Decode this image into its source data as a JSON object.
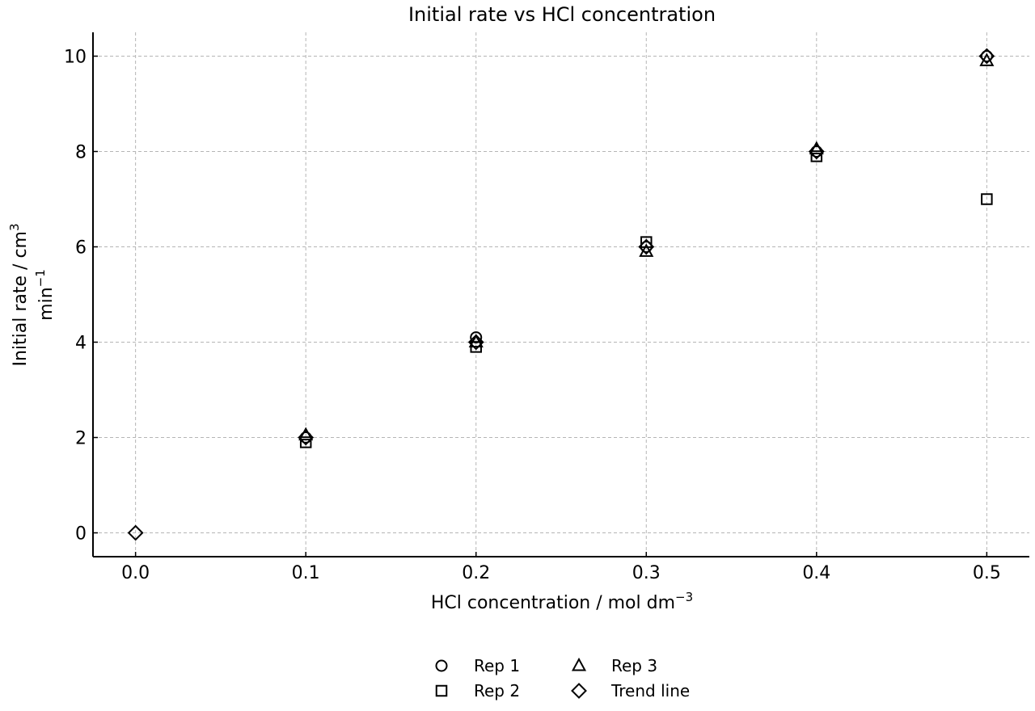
{
  "chart_data": {
    "type": "scatter",
    "title": "Initial rate vs HCl concentration",
    "xlabel": {
      "main": "HCl concentration / mol dm",
      "sup": "−3"
    },
    "ylabel": {
      "line1_main": "Initial rate / cm",
      "line1_sup": "3",
      "line2_main": "min",
      "line2_sup": "−1"
    },
    "xlim": [
      -0.025,
      0.525
    ],
    "ylim": [
      -0.5,
      10.5
    ],
    "xticks": [
      0.0,
      0.1,
      0.2,
      0.3,
      0.4,
      0.5
    ],
    "xtick_labels": [
      "0.0",
      "0.1",
      "0.2",
      "0.3",
      "0.4",
      "0.5"
    ],
    "yticks": [
      0,
      2,
      4,
      6,
      8,
      10
    ],
    "ytick_labels": [
      "0",
      "2",
      "4",
      "6",
      "8",
      "10"
    ],
    "grid": true,
    "legend_position": "bottom-center",
    "series": [
      {
        "name": "Rep 1",
        "marker": "circle",
        "color": "#000000",
        "x": [
          0.1,
          0.2,
          0.3,
          0.4,
          0.5
        ],
        "y": [
          2.0,
          4.1,
          6.0,
          8.0,
          10.0
        ]
      },
      {
        "name": "Rep 2",
        "marker": "square",
        "color": "#000000",
        "x": [
          0.1,
          0.2,
          0.3,
          0.4,
          0.5
        ],
        "y": [
          1.9,
          3.9,
          6.1,
          7.9,
          7.0
        ]
      },
      {
        "name": "Rep 3",
        "marker": "triangle",
        "color": "#000000",
        "x": [
          0.1,
          0.2,
          0.3,
          0.4,
          0.5
        ],
        "y": [
          2.05,
          4.0,
          5.9,
          8.05,
          9.9
        ]
      },
      {
        "name": "Trend line",
        "marker": "diamond",
        "color": "#000000",
        "x": [
          0.0,
          0.1,
          0.2,
          0.3,
          0.4,
          0.5
        ],
        "y": [
          0.0,
          2.0,
          4.0,
          6.0,
          8.0,
          10.0
        ]
      }
    ]
  }
}
